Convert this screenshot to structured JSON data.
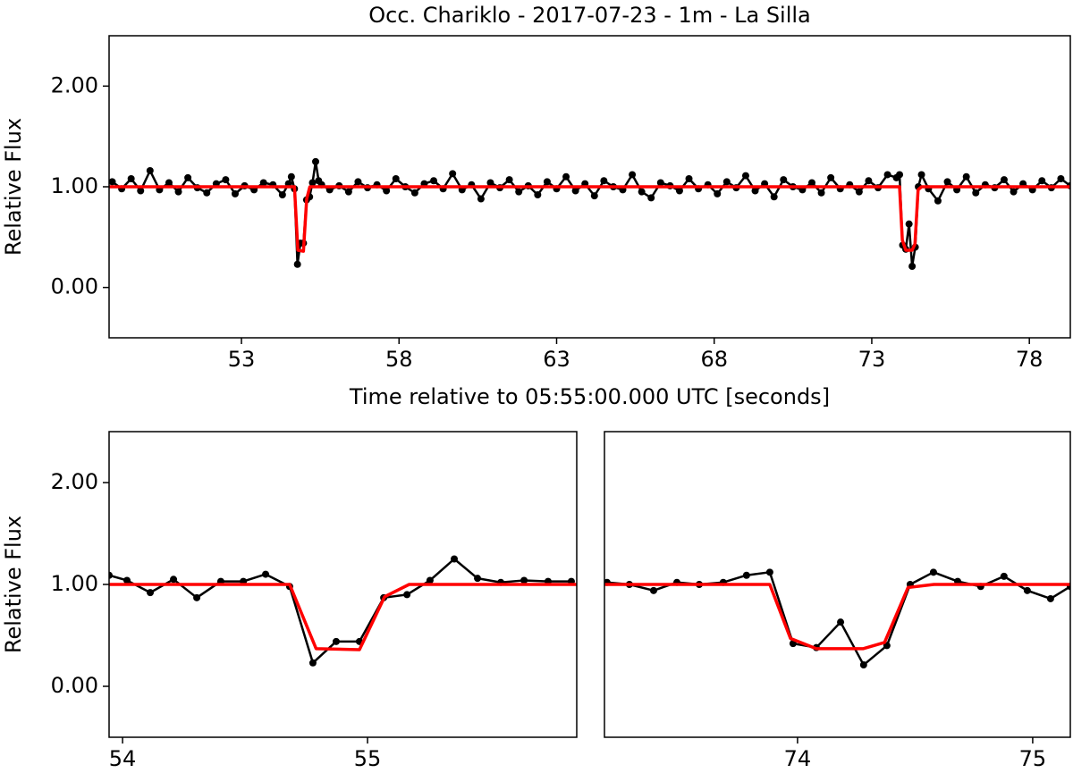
{
  "chart_data": [
    {
      "type": "line",
      "title": "Occ. Chariklo - 2017-07-23 - 1m - La Silla",
      "x_label": "Time relative to 05:55:00.000 UTC [seconds]",
      "y_label": "Relative Flux",
      "xlim": [
        48.8,
        79.3
      ],
      "xticks": [
        53,
        58,
        63,
        68,
        73,
        78
      ],
      "ylim": [
        -0.5,
        2.5
      ],
      "yticks": [
        {
          "value": 0,
          "label": "0.00"
        },
        {
          "value": 1,
          "label": "1.00"
        },
        {
          "value": 2,
          "label": "2.00"
        }
      ],
      "series": [
        {
          "color": "#000000",
          "markers": true,
          "x": [
            48.9,
            49.2,
            49.5,
            49.8,
            50.1,
            50.4,
            50.7,
            51.0,
            51.3,
            51.6,
            51.9,
            52.2,
            52.5,
            52.8,
            53.1,
            53.4,
            53.7,
            54.0,
            54.3,
            54.493,
            54.584,
            54.682,
            54.777,
            54.872,
            54.967,
            55.066,
            55.161,
            55.255,
            55.354,
            55.449,
            55.544,
            55.8,
            56.1,
            56.4,
            56.7,
            57.0,
            57.3,
            57.6,
            57.9,
            58.2,
            58.5,
            58.8,
            59.1,
            59.4,
            59.7,
            60.0,
            60.3,
            60.6,
            60.9,
            61.2,
            61.5,
            61.8,
            62.1,
            62.4,
            62.7,
            63.0,
            63.3,
            63.6,
            63.9,
            64.2,
            64.5,
            64.8,
            65.1,
            65.4,
            65.7,
            66.0,
            66.3,
            66.6,
            66.9,
            67.2,
            67.5,
            67.8,
            68.1,
            68.4,
            68.7,
            69.0,
            69.3,
            69.6,
            69.9,
            70.2,
            70.5,
            70.8,
            71.1,
            71.4,
            71.7,
            72.0,
            72.3,
            72.6,
            72.9,
            73.2,
            73.5,
            73.783,
            73.882,
            73.981,
            74.08,
            74.183,
            74.281,
            74.38,
            74.479,
            74.578,
            74.8,
            75.1,
            75.4,
            75.7,
            76.0,
            76.3,
            76.6,
            76.9,
            77.2,
            77.5,
            77.8,
            78.1,
            78.4,
            78.7,
            79.0,
            79.3
          ],
          "values": [
            1.05,
            0.98,
            1.08,
            0.96,
            1.16,
            0.97,
            1.04,
            0.95,
            1.09,
            0.99,
            0.94,
            1.03,
            1.07,
            0.93,
            1.01,
            0.97,
            1.04,
            1.02,
            0.92,
            1.03,
            1.1,
            0.98,
            0.23,
            0.44,
            0.44,
            0.87,
            0.9,
            1.04,
            1.25,
            1.06,
            1.02,
            0.97,
            1.01,
            0.95,
            1.05,
            0.99,
            1.02,
            0.96,
            1.08,
            1.0,
            0.94,
            1.03,
            1.06,
            0.98,
            1.13,
            0.97,
            1.02,
            0.88,
            1.04,
            0.99,
            1.07,
            0.95,
            1.01,
            0.92,
            1.05,
            0.98,
            1.1,
            0.96,
            1.03,
            0.91,
            1.06,
            1.0,
            0.97,
            1.12,
            0.95,
            0.89,
            1.04,
            1.01,
            0.96,
            1.08,
            0.98,
            1.02,
            0.93,
            1.05,
            0.99,
            1.11,
            0.96,
            1.03,
            0.9,
            1.07,
            1.0,
            0.97,
            1.04,
            0.94,
            1.09,
            0.98,
            1.02,
            0.95,
            1.06,
            0.99,
            1.12,
            1.09,
            1.12,
            0.42,
            0.38,
            0.63,
            0.21,
            0.4,
            1.0,
            1.12,
            0.98,
            0.86,
            1.05,
            0.97,
            1.1,
            0.94,
            1.02,
            0.99,
            1.07,
            0.95,
            1.03,
            0.97,
            1.06,
            0.99,
            1.08,
            1.01
          ]
        },
        {
          "color": "#ff0000",
          "markers": false,
          "x": [
            48.8,
            54.682,
            54.79,
            54.967,
            55.07,
            55.17,
            73.882,
            73.97,
            74.08,
            74.28,
            74.37,
            74.47,
            74.58,
            79.3
          ],
          "values": [
            1,
            1,
            0.37,
            0.36,
            0.88,
            1,
            1,
            0.47,
            0.37,
            0.37,
            0.43,
            0.97,
            1,
            1
          ]
        }
      ]
    },
    {
      "type": "line",
      "y_label": "Relative Flux",
      "xlim": [
        53.945,
        55.854
      ],
      "xticks": [
        54,
        55
      ],
      "ylim": [
        -0.5,
        2.5
      ],
      "yticks": [
        {
          "value": 0,
          "label": "0.00"
        },
        {
          "value": 1,
          "label": "1.00"
        },
        {
          "value": 2,
          "label": "2.00"
        }
      ],
      "series": [
        {
          "color": "#000000",
          "markers": true,
          "x": [
            53.945,
            54.018,
            54.113,
            54.208,
            54.303,
            54.401,
            54.493,
            54.584,
            54.682,
            54.777,
            54.872,
            54.967,
            55.066,
            55.161,
            55.255,
            55.354,
            55.449,
            55.544,
            55.639,
            55.737,
            55.832
          ],
          "values": [
            1.09,
            1.04,
            0.92,
            1.05,
            0.87,
            1.03,
            1.03,
            1.1,
            0.98,
            0.23,
            0.44,
            0.44,
            0.87,
            0.9,
            1.04,
            1.25,
            1.06,
            1.02,
            1.04,
            1.03,
            1.03
          ]
        },
        {
          "color": "#ff0000",
          "markers": false,
          "x": [
            53.945,
            54.682,
            54.79,
            54.967,
            55.07,
            55.17,
            55.854
          ],
          "values": [
            1,
            1,
            0.37,
            0.36,
            0.88,
            1,
            1
          ]
        }
      ]
    },
    {
      "type": "line",
      "xlim": [
        73.179,
        75.16
      ],
      "xticks": [
        74,
        75
      ],
      "ylim": [
        -0.5,
        2.5
      ],
      "series": [
        {
          "color": "#000000",
          "markers": true,
          "x": [
            73.19,
            73.285,
            73.388,
            73.487,
            73.582,
            73.684,
            73.783,
            73.882,
            73.981,
            74.08,
            74.183,
            74.281,
            74.38,
            74.479,
            74.578,
            74.681,
            74.779,
            74.878,
            74.977,
            75.076,
            75.16
          ],
          "values": [
            1.02,
            1.0,
            0.94,
            1.02,
            1.0,
            1.02,
            1.09,
            1.12,
            0.42,
            0.38,
            0.63,
            0.21,
            0.4,
            1.0,
            1.12,
            1.03,
            0.98,
            1.08,
            0.94,
            0.86,
            0.98
          ]
        },
        {
          "color": "#ff0000",
          "markers": false,
          "x": [
            73.179,
            73.882,
            73.97,
            74.08,
            74.28,
            74.37,
            74.47,
            74.58,
            75.16
          ],
          "values": [
            1,
            1,
            0.47,
            0.37,
            0.37,
            0.43,
            0.97,
            1,
            1
          ]
        }
      ]
    }
  ]
}
